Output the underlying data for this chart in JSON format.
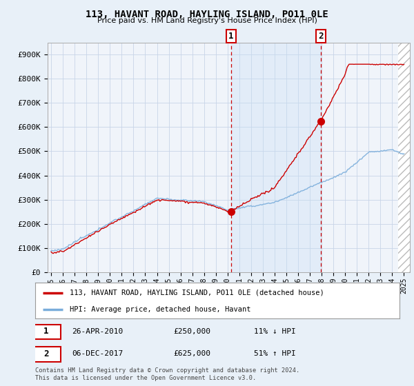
{
  "title": "113, HAVANT ROAD, HAYLING ISLAND, PO11 0LE",
  "subtitle": "Price paid vs. HM Land Registry's House Price Index (HPI)",
  "ylabel_ticks": [
    "£0",
    "£100K",
    "£200K",
    "£300K",
    "£400K",
    "£500K",
    "£600K",
    "£700K",
    "£800K",
    "£900K"
  ],
  "ytick_values": [
    0,
    100000,
    200000,
    300000,
    400000,
    500000,
    600000,
    700000,
    800000,
    900000
  ],
  "ylim": [
    0,
    950000
  ],
  "xlim_start": 1994.7,
  "xlim_end": 2025.5,
  "sale1_date": 2010.31,
  "sale1_price": 250000,
  "sale2_date": 2017.92,
  "sale2_price": 625000,
  "sale1_label": "1",
  "sale2_label": "2",
  "sale1_date_str": "26-APR-2010",
  "sale1_price_str": "£250,000",
  "sale1_hpi_str": "11% ↓ HPI",
  "sale2_date_str": "06-DEC-2017",
  "sale2_price_str": "£625,000",
  "sale2_hpi_str": "51% ↑ HPI",
  "line1_color": "#cc0000",
  "line2_color": "#7aaddb",
  "shade_color": "#ddeeff",
  "hatch_color": "#cccccc",
  "legend_line1": "113, HAVANT ROAD, HAYLING ISLAND, PO11 0LE (detached house)",
  "legend_line2": "HPI: Average price, detached house, Havant",
  "footnote": "Contains HM Land Registry data © Crown copyright and database right 2024.\nThis data is licensed under the Open Government Licence v3.0.",
  "background_color": "#e8f0f8",
  "plot_bg_color": "#f0f4fa",
  "grid_color": "#c8d4e8",
  "title_fontsize": 10,
  "subtitle_fontsize": 8
}
